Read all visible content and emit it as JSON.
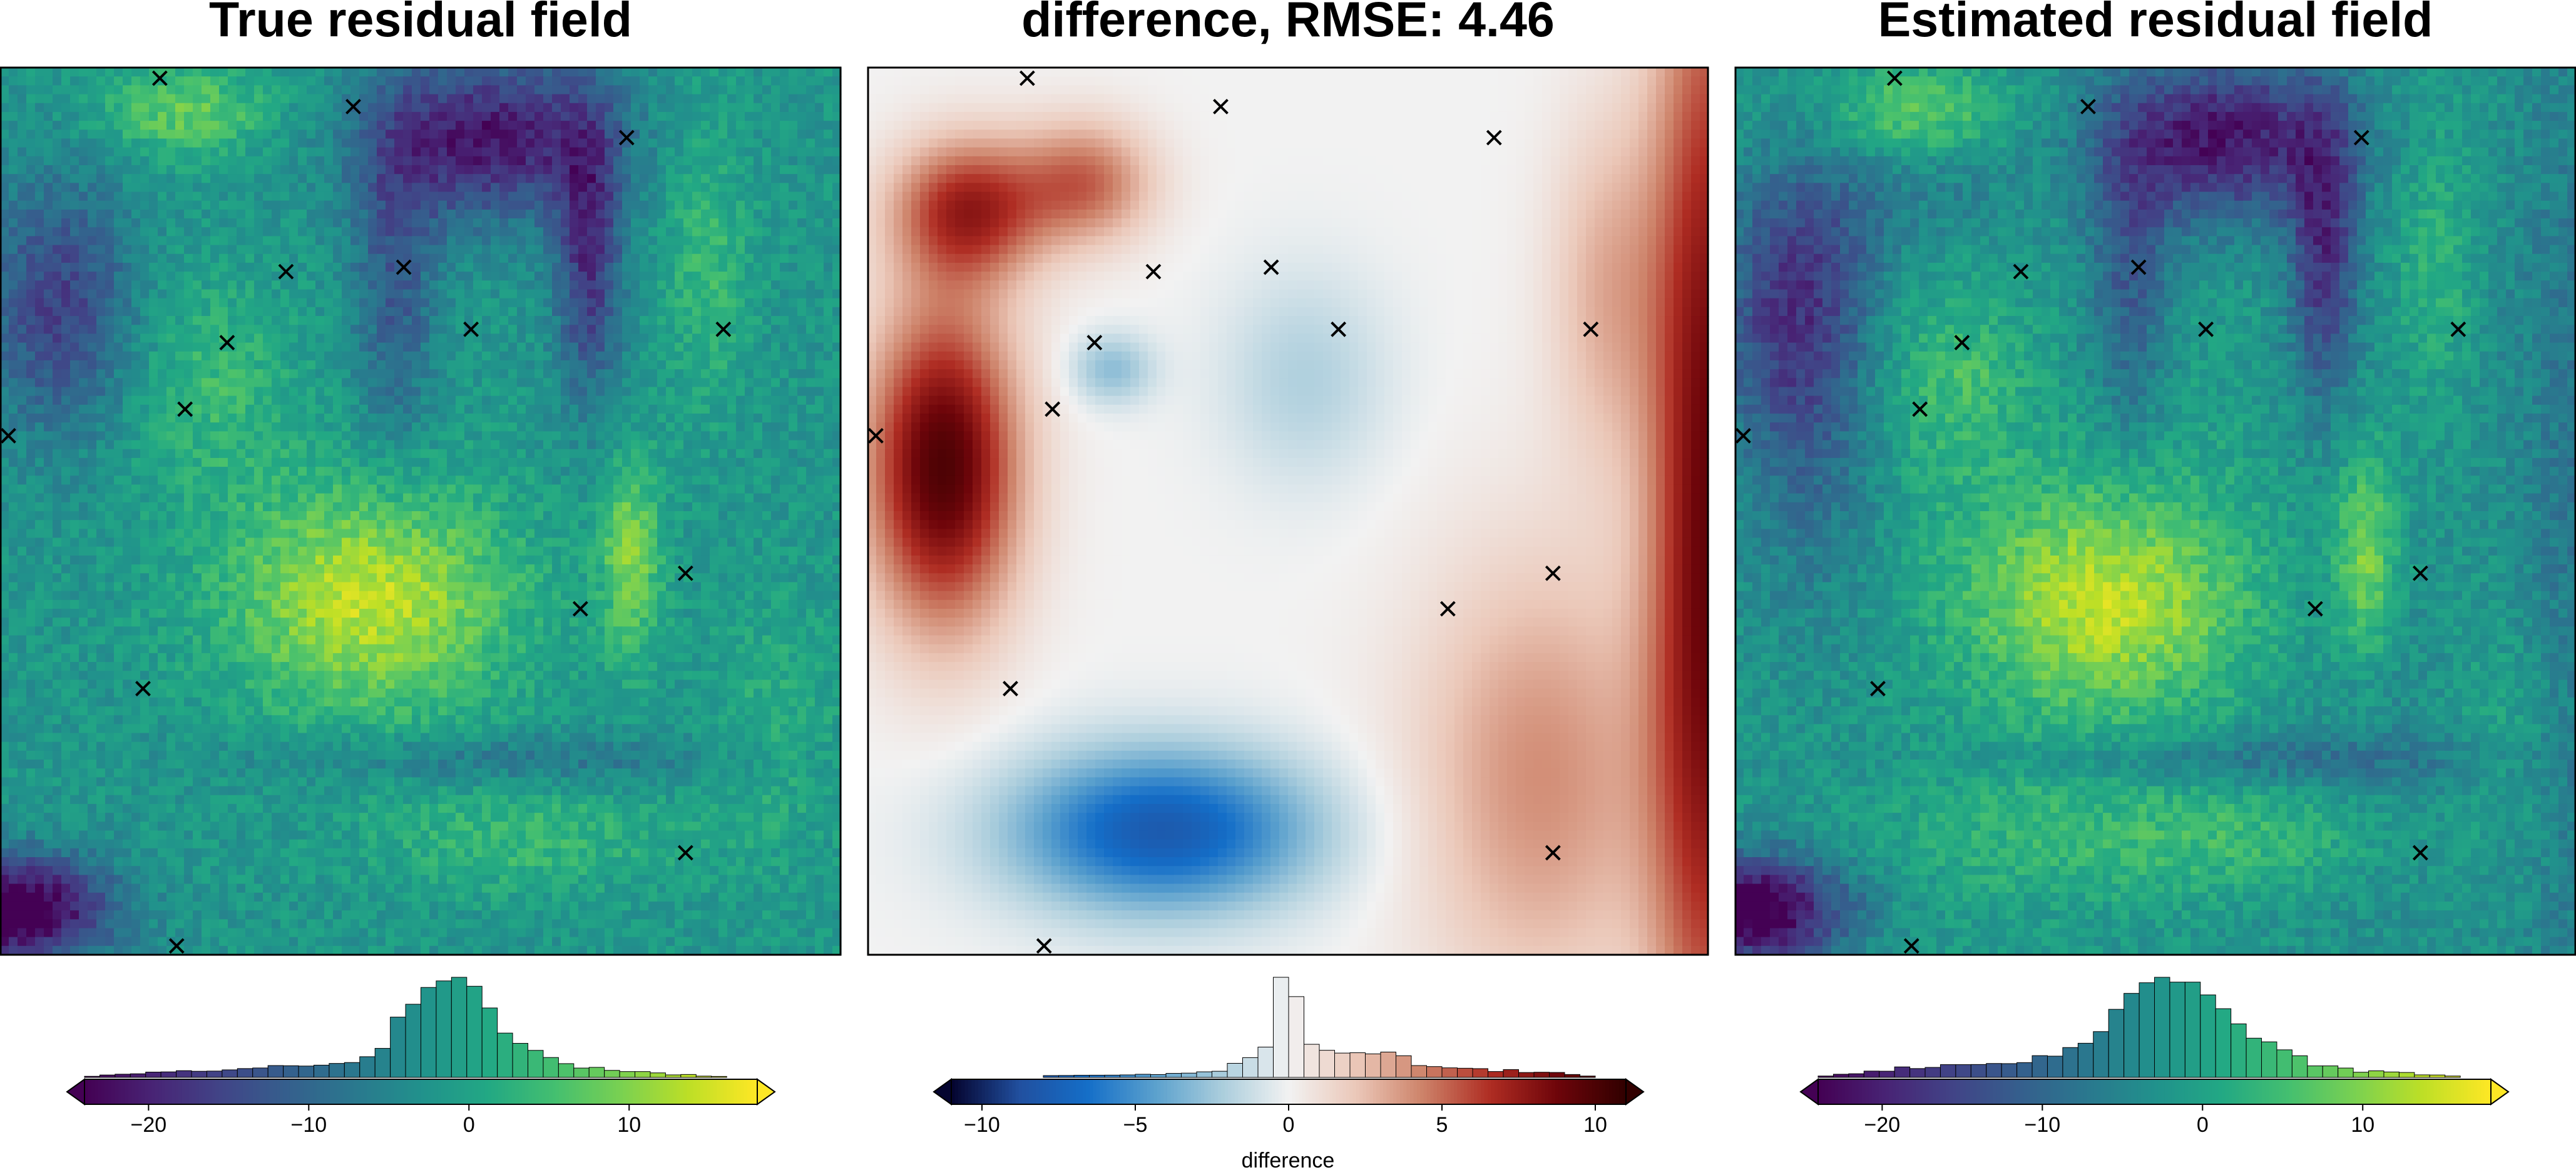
{
  "chart_data": [
    {
      "type": "heatmap",
      "title": "True residual field",
      "colormap": "viridis",
      "color_range": [
        -24,
        18
      ],
      "colorbar": {
        "ticks": [
          -20,
          -10,
          0,
          10
        ],
        "label": "",
        "histogram": true
      },
      "constraint_points": [
        [
          19.0,
          1.2
        ],
        [
          42.0,
          4.4
        ],
        [
          74.5,
          7.9
        ],
        [
          34.0,
          23.0
        ],
        [
          48.0,
          22.5
        ],
        [
          56.0,
          29.5
        ],
        [
          86.0,
          29.5
        ],
        [
          27.0,
          31.0
        ],
        [
          22.0,
          38.5
        ],
        [
          1.0,
          41.5
        ],
        [
          81.5,
          57.0
        ],
        [
          69.0,
          61.0
        ],
        [
          17.0,
          70.0
        ],
        [
          81.5,
          88.5
        ],
        [
          21.0,
          99.0
        ]
      ]
    },
    {
      "type": "heatmap",
      "title": "difference, RMSE: 4.46",
      "colormap": "diverging blue-white-red",
      "color_range": [
        -11,
        11
      ],
      "colorbar": {
        "ticks": [
          -10,
          -5,
          0,
          5,
          10
        ],
        "label": "difference",
        "histogram": true
      },
      "constraint_points": [
        [
          19.0,
          1.2
        ],
        [
          42.0,
          4.4
        ],
        [
          74.5,
          7.9
        ],
        [
          34.0,
          23.0
        ],
        [
          48.0,
          22.5
        ],
        [
          56.0,
          29.5
        ],
        [
          86.0,
          29.5
        ],
        [
          27.0,
          31.0
        ],
        [
          22.0,
          38.5
        ],
        [
          1.0,
          41.5
        ],
        [
          81.5,
          57.0
        ],
        [
          69.0,
          61.0
        ],
        [
          17.0,
          70.0
        ],
        [
          81.5,
          88.5
        ],
        [
          21.0,
          99.0
        ]
      ]
    },
    {
      "type": "heatmap",
      "title": "Estimated residual field",
      "colormap": "viridis",
      "color_range": [
        -24,
        18
      ],
      "colorbar": {
        "ticks": [
          -20,
          -10,
          0,
          10
        ],
        "label": "",
        "histogram": true
      },
      "constraint_points": [
        [
          19.0,
          1.2
        ],
        [
          42.0,
          4.4
        ],
        [
          74.5,
          7.9
        ],
        [
          34.0,
          23.0
        ],
        [
          48.0,
          22.5
        ],
        [
          56.0,
          29.5
        ],
        [
          86.0,
          29.5
        ],
        [
          27.0,
          31.0
        ],
        [
          22.0,
          38.5
        ],
        [
          1.0,
          41.5
        ],
        [
          81.5,
          57.0
        ],
        [
          69.0,
          61.0
        ],
        [
          17.0,
          70.0
        ],
        [
          81.5,
          88.5
        ],
        [
          21.0,
          99.0
        ]
      ]
    }
  ],
  "panels": [
    {
      "title": "True residual field",
      "cb_label": ""
    },
    {
      "title": "difference, RMSE: 4.46",
      "cb_label": "difference"
    },
    {
      "title": "Estimated residual field",
      "cb_label": ""
    }
  ]
}
